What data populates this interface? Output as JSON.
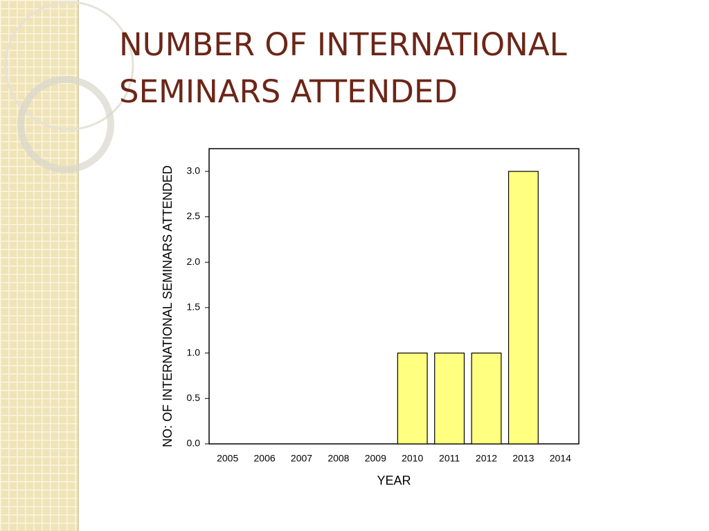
{
  "chart_data": {
    "type": "bar",
    "title": [
      "NUMBER OF INTERNATIONAL",
      "SEMINARS  ATTENDED"
    ],
    "x_label": "YEAR",
    "y_label": "NO: OF INTERNATIONAL SEMINARS ATTENDED",
    "categories": [
      "2005",
      "2006",
      "2007",
      "2008",
      "2009",
      "2010",
      "2011",
      "2012",
      "2013",
      "2014"
    ],
    "values": [
      0,
      0,
      0,
      0,
      0,
      1,
      1,
      1,
      3,
      0
    ],
    "color": "#ffff80",
    "ylim": [
      0,
      3.25
    ],
    "yticks": [
      {
        "value": 0,
        "label": "0.0"
      },
      {
        "value": 0.5,
        "label": "0.5"
      },
      {
        "value": 1,
        "label": "1.0"
      },
      {
        "value": 1.5,
        "label": "1.5"
      },
      {
        "value": 2,
        "label": "2.0"
      },
      {
        "value": 2.5,
        "label": "2.5"
      },
      {
        "value": 3,
        "label": "3.0"
      }
    ],
    "grid": false
  }
}
